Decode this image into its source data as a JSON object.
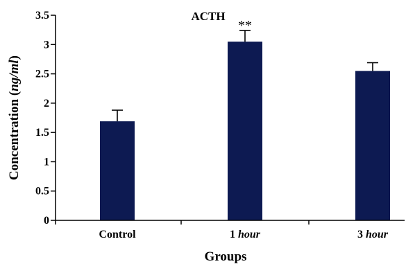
{
  "chart_data": {
    "type": "bar",
    "title": "ACTH",
    "xlabel": "Groups",
    "ylabel": {
      "main": "Concentration (",
      "unit": "ng/ml",
      "close": ")"
    },
    "categories": [
      {
        "main": "Control",
        "italic": ""
      },
      {
        "main": "1 ",
        "italic": "hour"
      },
      {
        "main": "3 ",
        "italic": "hour"
      }
    ],
    "values": [
      1.69,
      3.05,
      2.55
    ],
    "error": [
      0.19,
      0.19,
      0.14
    ],
    "annotations": [
      "",
      "**",
      ""
    ],
    "yticks": [
      "0",
      "0.5",
      "1",
      "1.5",
      "2",
      "2.5",
      "3",
      "3.5"
    ],
    "ylim": [
      0,
      3.5
    ],
    "bar_color": "#0d1a52",
    "grid": false,
    "legend": "none"
  }
}
